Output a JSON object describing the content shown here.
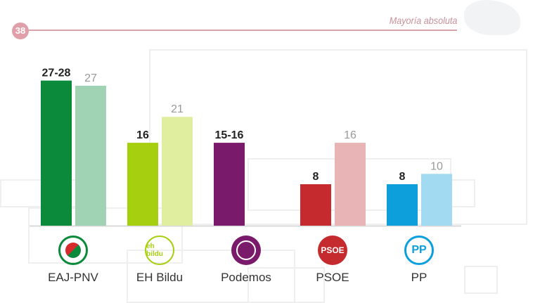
{
  "header": {
    "page_number": "38",
    "title": "Mayoría absoluta"
  },
  "chart_data": {
    "type": "bar",
    "categories": [
      "EAJ-PNV",
      "EH Bildu",
      "Podemos",
      "PSOE",
      "PP"
    ],
    "series": [
      {
        "values": [
          [
            27,
            28
          ],
          16,
          [
            15,
            16
          ],
          8,
          8
        ],
        "labels": [
          "27-28",
          "16",
          "15-16",
          "8",
          "8"
        ],
        "colors": [
          "#0a8a3a",
          "#a6cf0f",
          "#7a1a6a",
          "#c42a2e",
          "#0d9fdc"
        ]
      },
      {
        "values": [
          27,
          21,
          null,
          16,
          10
        ],
        "labels": [
          "27",
          "21",
          "",
          "16",
          "10"
        ],
        "colors": [
          "#9fd3b3",
          "#e0eea0",
          "#ffffff",
          "#e8b4b5",
          "#a2dbf1"
        ]
      }
    ],
    "ylim": [
      0,
      28
    ],
    "grid": false,
    "legend": "none"
  },
  "logos": [
    {
      "name": "eaj-pnv-logo",
      "text": "",
      "color": "#0a8a3a"
    },
    {
      "name": "eh-bildu-logo",
      "text": "eh bildu",
      "color": "#a6cf0f"
    },
    {
      "name": "podemos-logo",
      "text": "",
      "color": "#7a1a6a"
    },
    {
      "name": "psoe-logo",
      "text": "PSOE",
      "color": "#c42a2e"
    },
    {
      "name": "pp-logo",
      "text": "PP",
      "color": "#0d9fdc"
    }
  ]
}
